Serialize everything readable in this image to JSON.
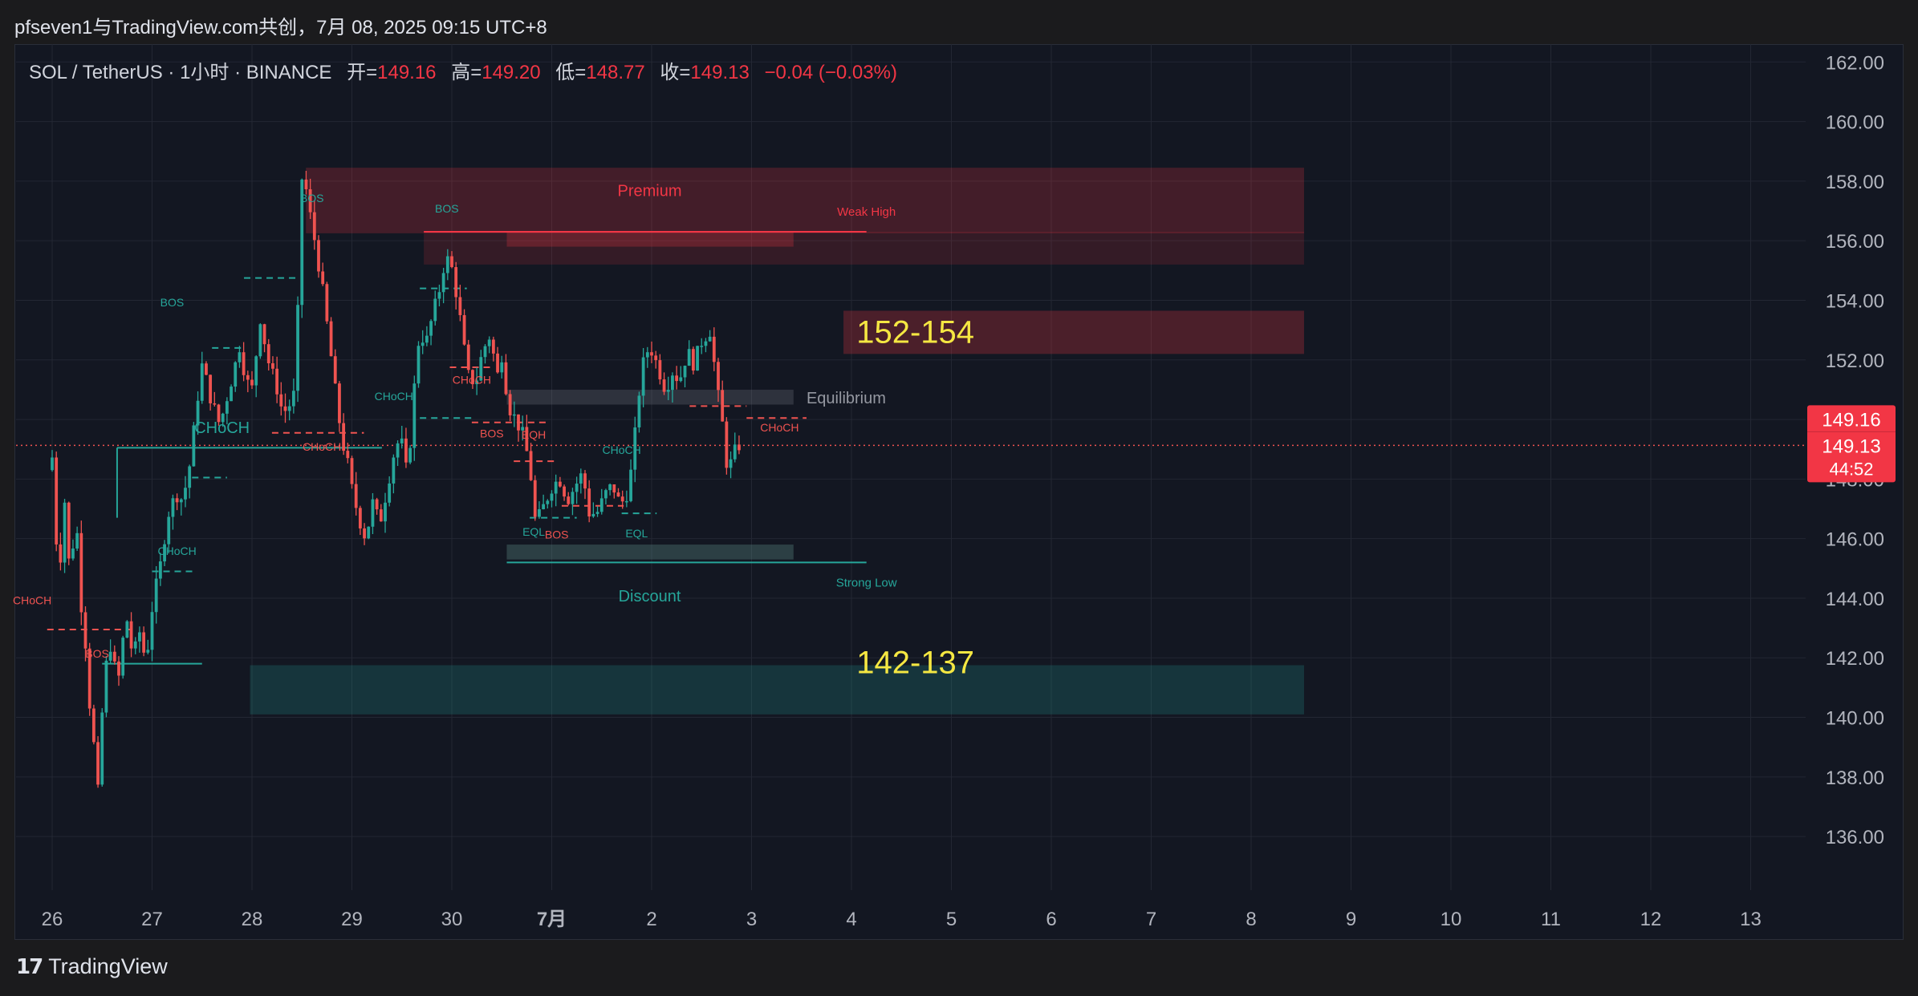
{
  "header": {
    "title": "pfseven1与TradingView.com共创，7月 08, 2025 09:15 UTC+8"
  },
  "legend": {
    "symbol": "SOL / TetherUS · 1小时 · BINANCE",
    "open_label": "开=",
    "open": "149.16",
    "high_label": "高=",
    "high": "149.20",
    "low_label": "低=",
    "low": "148.77",
    "close_label": "收=",
    "close": "149.13",
    "change": "−0.04 (−0.03%)"
  },
  "footer": {
    "brand_mark": "𝟭𝟳",
    "brand": "TradingView"
  },
  "chart_data": {
    "type": "candlestick",
    "x_ticks": [
      "26",
      "27",
      "28",
      "29",
      "30",
      "7月",
      "2",
      "3",
      "4",
      "5",
      "6",
      "7",
      "8",
      "9",
      "10",
      "11",
      "12",
      "13"
    ],
    "y_ticks": [
      "162.00",
      "160.00",
      "158.00",
      "156.00",
      "154.00",
      "152.00",
      "150.00",
      "148.00",
      "146.00",
      "144.00",
      "142.00",
      "140.00",
      "138.00",
      "136.00"
    ],
    "ylim": [
      134.2,
      162.6
    ],
    "price_labels": {
      "open": "149.16",
      "close": "149.13",
      "countdown": "44:52"
    },
    "current_price": 149.13,
    "ohlc_path": [
      [
        148.3,
        0.0
      ],
      [
        147.5,
        0.02
      ],
      [
        149.2,
        0.05
      ],
      [
        144.3,
        0.1
      ],
      [
        147.4,
        0.17
      ],
      [
        144.6,
        0.22
      ],
      [
        147.0,
        0.28
      ],
      [
        144.1,
        0.32
      ],
      [
        142.8,
        0.37
      ],
      [
        141.0,
        0.4
      ],
      [
        138.7,
        0.47
      ],
      [
        137.5,
        0.5
      ],
      [
        141.3,
        0.56
      ],
      [
        142.5,
        0.62
      ],
      [
        141.1,
        0.7
      ],
      [
        143.5,
        0.78
      ],
      [
        142.0,
        0.85
      ],
      [
        142.9,
        0.92
      ],
      [
        141.8,
        0.98
      ],
      [
        143.9,
        1.05
      ],
      [
        145.0,
        1.12
      ],
      [
        146.8,
        1.2
      ],
      [
        147.5,
        1.28
      ],
      [
        147.3,
        1.35
      ],
      [
        148.5,
        1.42
      ],
      [
        150.8,
        1.5
      ],
      [
        152.0,
        1.55
      ],
      [
        151.0,
        1.6
      ],
      [
        150.3,
        1.67
      ],
      [
        149.8,
        1.72
      ],
      [
        150.6,
        1.78
      ],
      [
        151.5,
        1.85
      ],
      [
        152.5,
        1.92
      ],
      [
        151.3,
        1.98
      ],
      [
        151.0,
        2.05
      ],
      [
        153.5,
        2.12
      ],
      [
        152.0,
        2.2
      ],
      [
        151.2,
        2.28
      ],
      [
        150.2,
        2.35
      ],
      [
        150.5,
        2.42
      ],
      [
        151.0,
        2.48
      ],
      [
        157.5,
        2.53
      ],
      [
        158.5,
        2.55
      ],
      [
        157.3,
        2.6
      ],
      [
        155.8,
        2.68
      ],
      [
        154.3,
        2.75
      ],
      [
        152.2,
        2.83
      ],
      [
        150.3,
        2.9
      ],
      [
        149.2,
        2.95
      ],
      [
        148.5,
        3.0
      ],
      [
        147.5,
        3.05
      ],
      [
        146.6,
        3.12
      ],
      [
        146.0,
        3.18
      ],
      [
        147.2,
        3.25
      ],
      [
        146.5,
        3.32
      ],
      [
        147.8,
        3.4
      ],
      [
        149.0,
        3.47
      ],
      [
        149.4,
        3.53
      ],
      [
        148.0,
        3.6
      ],
      [
        150.5,
        3.65
      ],
      [
        153.0,
        3.72
      ],
      [
        152.5,
        3.78
      ],
      [
        153.5,
        3.85
      ],
      [
        154.4,
        3.92
      ],
      [
        155.5,
        3.98
      ],
      [
        155.0,
        4.05
      ],
      [
        153.5,
        4.12
      ],
      [
        151.5,
        4.2
      ],
      [
        151.2,
        4.28
      ],
      [
        152.3,
        4.35
      ],
      [
        152.8,
        4.42
      ],
      [
        151.5,
        4.5
      ],
      [
        152.3,
        4.55
      ],
      [
        150.5,
        4.6
      ],
      [
        150.0,
        4.68
      ],
      [
        149.5,
        4.75
      ],
      [
        148.5,
        4.82
      ],
      [
        146.5,
        4.88
      ],
      [
        147.0,
        4.95
      ],
      [
        147.8,
        5.05
      ],
      [
        148.0,
        5.12
      ],
      [
        147.3,
        5.2
      ],
      [
        147.8,
        5.28
      ],
      [
        148.2,
        5.35
      ],
      [
        146.8,
        5.42
      ],
      [
        146.9,
        5.5
      ],
      [
        147.5,
        5.58
      ],
      [
        147.8,
        5.65
      ],
      [
        147.2,
        5.72
      ],
      [
        147.3,
        5.78
      ],
      [
        148.5,
        5.85
      ],
      [
        150.5,
        5.9
      ],
      [
        151.8,
        5.95
      ],
      [
        152.5,
        6.02
      ],
      [
        151.8,
        6.1
      ],
      [
        151.0,
        6.18
      ],
      [
        151.6,
        6.25
      ],
      [
        151.3,
        6.32
      ],
      [
        152.3,
        6.4
      ],
      [
        151.8,
        6.47
      ],
      [
        152.5,
        6.52
      ],
      [
        152.8,
        6.58
      ],
      [
        153.0,
        6.63
      ],
      [
        151.5,
        6.68
      ],
      [
        150.2,
        6.73
      ],
      [
        149.5,
        6.77
      ],
      [
        148.2,
        6.8
      ],
      [
        148.8,
        6.86
      ],
      [
        149.13,
        6.9
      ]
    ],
    "zones": [
      {
        "type": "premium",
        "label": "Premium",
        "x": [
          2.54,
          12.53
        ],
        "y": [
          156.25,
          158.45
        ]
      },
      {
        "type": "premium-inner",
        "x": [
          4.55,
          7.42
        ],
        "y": [
          155.8,
          156.3
        ]
      },
      {
        "type": "supply-upper",
        "x": [
          3.72,
          12.53
        ],
        "y": [
          155.2,
          156.3
        ]
      },
      {
        "type": "supply",
        "x": [
          7.92,
          12.53
        ],
        "y": [
          152.2,
          153.65
        ]
      },
      {
        "type": "equilibrium",
        "label": "Equilibrium",
        "x": [
          4.55,
          7.42
        ],
        "y": [
          150.5,
          151.0
        ]
      },
      {
        "type": "discount",
        "label": "Discount",
        "x": [
          4.55,
          7.42
        ],
        "y": [
          145.3,
          145.8
        ]
      },
      {
        "type": "demand",
        "x": [
          1.98,
          12.53
        ],
        "y": [
          140.1,
          141.75
        ]
      }
    ],
    "levels": [
      {
        "label": "Weak High",
        "y": 156.3,
        "x": [
          3.72,
          8.15
        ]
      },
      {
        "label": "Strong Low",
        "y": 145.2,
        "x": [
          4.55,
          8.15
        ]
      }
    ],
    "zone_annotations": [
      {
        "text": "152-154",
        "x": 8.05,
        "y": 152.9
      },
      {
        "text": "142-137",
        "x": 8.05,
        "y": 141.8
      }
    ],
    "structure_labels": [
      {
        "text": "CHoCH",
        "x": 1.7,
        "y": 149.55,
        "kind": "bull-main"
      },
      {
        "text": "CHoCH",
        "x": -0.2,
        "y": 143.8,
        "kind": "bear"
      },
      {
        "text": "BOS",
        "x": 0.45,
        "y": 142.0,
        "kind": "bear"
      },
      {
        "text": "CHoCH",
        "x": 1.25,
        "y": 145.45,
        "kind": "bull"
      },
      {
        "text": "BOS",
        "x": 1.2,
        "y": 153.8,
        "kind": "bull"
      },
      {
        "text": "BOS",
        "x": 2.6,
        "y": 157.3,
        "kind": "bull"
      },
      {
        "text": "CHoCH",
        "x": 2.7,
        "y": 148.95,
        "kind": "bear"
      },
      {
        "text": "CHoCH",
        "x": 3.42,
        "y": 150.65,
        "kind": "bull"
      },
      {
        "text": "BOS",
        "x": 3.95,
        "y": 156.95,
        "kind": "bull"
      },
      {
        "text": "CHoCH",
        "x": 4.2,
        "y": 151.2,
        "kind": "bear"
      },
      {
        "text": "BOS",
        "x": 4.4,
        "y": 149.4,
        "kind": "bear"
      },
      {
        "text": "EQH",
        "x": 4.82,
        "y": 149.35,
        "kind": "bear"
      },
      {
        "text": "EQL",
        "x": 4.82,
        "y": 146.1,
        "kind": "bull"
      },
      {
        "text": "BOS",
        "x": 5.05,
        "y": 146.0,
        "kind": "bear"
      },
      {
        "text": "CHoCH",
        "x": 5.7,
        "y": 148.85,
        "kind": "bull"
      },
      {
        "text": "EQL",
        "x": 5.85,
        "y": 146.05,
        "kind": "bull"
      },
      {
        "text": "CHoCH",
        "x": 7.28,
        "y": 149.6,
        "kind": "bear"
      }
    ],
    "structure_lines": [
      {
        "x": [
          0.65,
          3.3
        ],
        "y": 149.05,
        "kind": "bull-main"
      },
      {
        "x": [
          0.5,
          1.5
        ],
        "y": 141.8,
        "kind": "bull"
      },
      {
        "x": [
          -0.05,
          0.82
        ],
        "y": 142.95,
        "kind": "bear-dash"
      },
      {
        "x": [
          1.0,
          1.45
        ],
        "y": 144.9,
        "kind": "bull-dash"
      },
      {
        "x": [
          1.4,
          1.75
        ],
        "y": 148.05,
        "kind": "bull-dash"
      },
      {
        "x": [
          1.6,
          1.92
        ],
        "y": 152.4,
        "kind": "bull-dash"
      },
      {
        "x": [
          1.92,
          2.46
        ],
        "y": 154.75,
        "kind": "bull-dash"
      },
      {
        "x": [
          2.2,
          3.12
        ],
        "y": 149.55,
        "kind": "bear-dash"
      },
      {
        "x": [
          3.68,
          4.2
        ],
        "y": 150.05,
        "kind": "bull-dash"
      },
      {
        "x": [
          3.68,
          4.15
        ],
        "y": 154.4,
        "kind": "bull-dash"
      },
      {
        "x": [
          3.98,
          4.42
        ],
        "y": 151.75,
        "kind": "bear-dash"
      },
      {
        "x": [
          4.2,
          4.95
        ],
        "y": 149.9,
        "kind": "bear-dash"
      },
      {
        "x": [
          4.62,
          5.05
        ],
        "y": 148.6,
        "kind": "bear-dash"
      },
      {
        "x": [
          4.78,
          5.25
        ],
        "y": 146.7,
        "kind": "bull-dash"
      },
      {
        "x": [
          5.1,
          5.72
        ],
        "y": 147.1,
        "kind": "bear-dash"
      },
      {
        "x": [
          5.7,
          6.05
        ],
        "y": 146.85,
        "kind": "bull-dash"
      },
      {
        "x": [
          6.38,
          6.95
        ],
        "y": 150.45,
        "kind": "bear-dash"
      },
      {
        "x": [
          6.95,
          7.55
        ],
        "y": 150.05,
        "kind": "bear-dash"
      }
    ],
    "colors": {
      "up": "#26a69a",
      "down": "#ef5350",
      "background": "#131722",
      "grid": "#232733",
      "accent_text": "#f5e742"
    }
  }
}
